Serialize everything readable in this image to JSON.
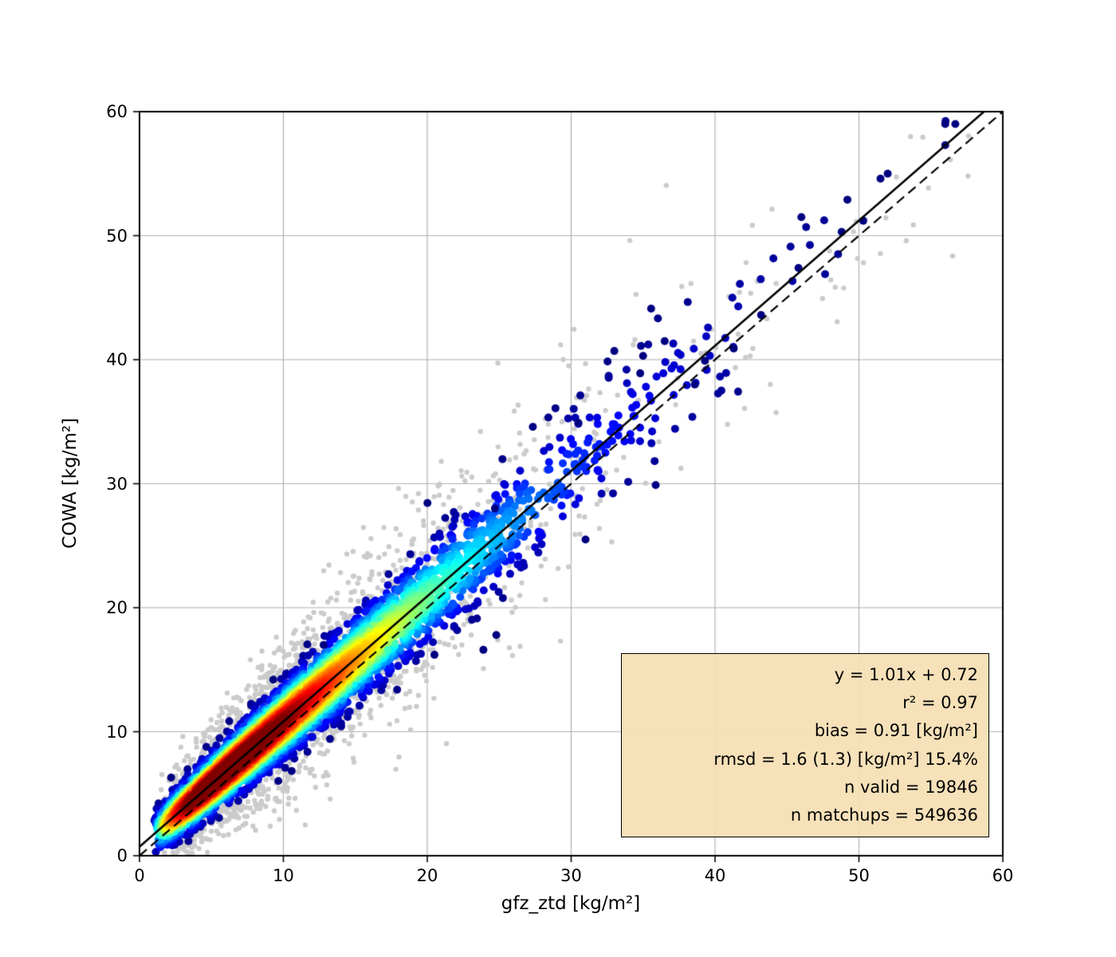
{
  "chart_data": {
    "type": "scatter",
    "title": "",
    "xlabel": "gfz_ztd [kg/m²]",
    "ylabel": "COWA [kg/m²]",
    "xlim": [
      0,
      60
    ],
    "ylim": [
      0,
      60
    ],
    "x_ticks": [
      "0",
      "10",
      "20",
      "30",
      "40",
      "50",
      "60"
    ],
    "y_ticks": [
      "0",
      "10",
      "20",
      "30",
      "40",
      "50",
      "60"
    ],
    "x_tick_values": [
      0,
      10,
      20,
      30,
      40,
      50,
      60
    ],
    "y_tick_values": [
      0,
      10,
      20,
      30,
      40,
      50,
      60
    ],
    "grid": true,
    "grid_color": "#b0b0b0",
    "frame_color": "#000000",
    "fit_line": {
      "slope": 1.01,
      "intercept": 0.72,
      "style": "solid",
      "color": "#000000"
    },
    "identity_line": {
      "slope": 1.0,
      "intercept": 0.0,
      "style": "dashed",
      "color": "#000000"
    },
    "stats_box": {
      "background": "rgba(245,222,179,0.92)",
      "border_color": "#000000",
      "lines": [
        "y = 1.01x + 0.72",
        "r² = 0.97",
        "bias = 0.91 [kg/m²]",
        "rmsd = 1.6 (1.3) [kg/m²] 15.4%",
        "n valid = 19846",
        "n matchups = 549636"
      ]
    },
    "stats": {
      "slope": 1.01,
      "intercept": 0.72,
      "r2": 0.97,
      "bias_kg_m2": 0.91,
      "rmsd_kg_m2": 1.6,
      "rmsd_unbiased_kg_m2": 1.3,
      "rmsd_percent": 15.4,
      "n_valid": 19846,
      "n_matchups": 549636
    },
    "density_scatter": {
      "colormap": "jet",
      "seed": 42,
      "n_colored_points": 5000,
      "n_gray_points": 2600,
      "n_gray_tail_points": 55,
      "x_distribution": {
        "type": "gamma",
        "shape": 2,
        "scale": 5,
        "offset": 1
      },
      "residual_sigma": {
        "base": 0.8,
        "slope": 0.055
      },
      "gray_sigma_factor": 2.1,
      "point_radius": 5,
      "gray_point_radius": 3.2,
      "gray_color": "#cbcbcb",
      "x_extent": [
        0.5,
        58
      ],
      "outlier_points": [
        [
          56.0,
          59.0
        ],
        [
          56.7,
          59.0
        ],
        [
          56.0,
          57.3
        ],
        [
          52.0,
          55.0
        ],
        [
          51.5,
          54.6
        ],
        [
          50.3,
          51.2
        ],
        [
          49.2,
          52.9
        ],
        [
          48.8,
          50.3
        ],
        [
          46.0,
          51.5
        ],
        [
          45.8,
          47.4
        ],
        [
          43.2,
          43.6
        ],
        [
          41.3,
          40.9
        ],
        [
          39.3,
          39.9
        ],
        [
          38.6,
          38.0
        ],
        [
          36.5,
          41.5
        ],
        [
          35.0,
          40.3
        ],
        [
          34.8,
          38.9
        ],
        [
          33.0,
          40.7
        ],
        [
          30.5,
          34.9
        ],
        [
          31.0,
          25.5
        ],
        [
          24.7,
          28.0
        ],
        [
          23.9,
          16.6
        ],
        [
          24.8,
          17.8
        ],
        [
          20.5,
          16.2
        ],
        [
          12.8,
          17.0
        ],
        [
          9.3,
          14.2
        ],
        [
          2.2,
          6.3
        ]
      ]
    }
  }
}
